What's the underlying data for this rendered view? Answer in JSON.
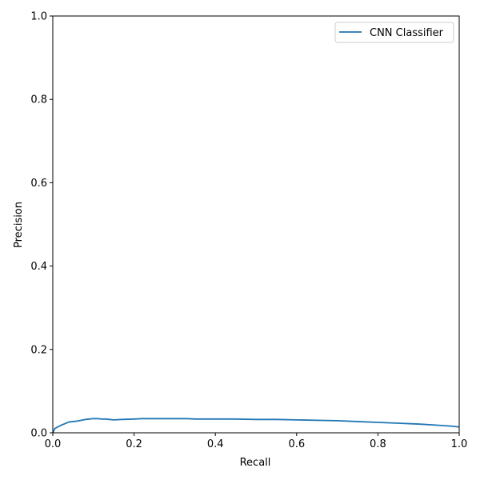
{
  "chart_data": {
    "type": "line",
    "xlabel": "Recall",
    "ylabel": "Precision",
    "xlim": [
      0.0,
      1.0
    ],
    "ylim": [
      0.0,
      1.0
    ],
    "xticks": [
      "0.0",
      "0.2",
      "0.4",
      "0.6",
      "0.8",
      "1.0"
    ],
    "yticks": [
      "0.0",
      "0.2",
      "0.4",
      "0.6",
      "0.8",
      "1.0"
    ],
    "grid": false,
    "legend_position": "top-right",
    "series": [
      {
        "name": "CNN Classifier",
        "color": "#1f77b4",
        "x": [
          0.0,
          0.005,
          0.01,
          0.02,
          0.03,
          0.04,
          0.05,
          0.06,
          0.07,
          0.08,
          0.09,
          0.1,
          0.11,
          0.12,
          0.13,
          0.15,
          0.17,
          0.2,
          0.22,
          0.25,
          0.3,
          0.33,
          0.35,
          0.4,
          0.45,
          0.5,
          0.55,
          0.6,
          0.65,
          0.7,
          0.75,
          0.8,
          0.85,
          0.9,
          0.95,
          0.98,
          1.0
        ],
        "y": [
          0.0,
          0.01,
          0.013,
          0.018,
          0.022,
          0.026,
          0.027,
          0.028,
          0.03,
          0.032,
          0.033,
          0.034,
          0.034,
          0.033,
          0.033,
          0.031,
          0.032,
          0.033,
          0.034,
          0.034,
          0.034,
          0.034,
          0.033,
          0.033,
          0.033,
          0.032,
          0.032,
          0.031,
          0.03,
          0.029,
          0.027,
          0.025,
          0.023,
          0.021,
          0.018,
          0.016,
          0.014
        ]
      }
    ]
  }
}
